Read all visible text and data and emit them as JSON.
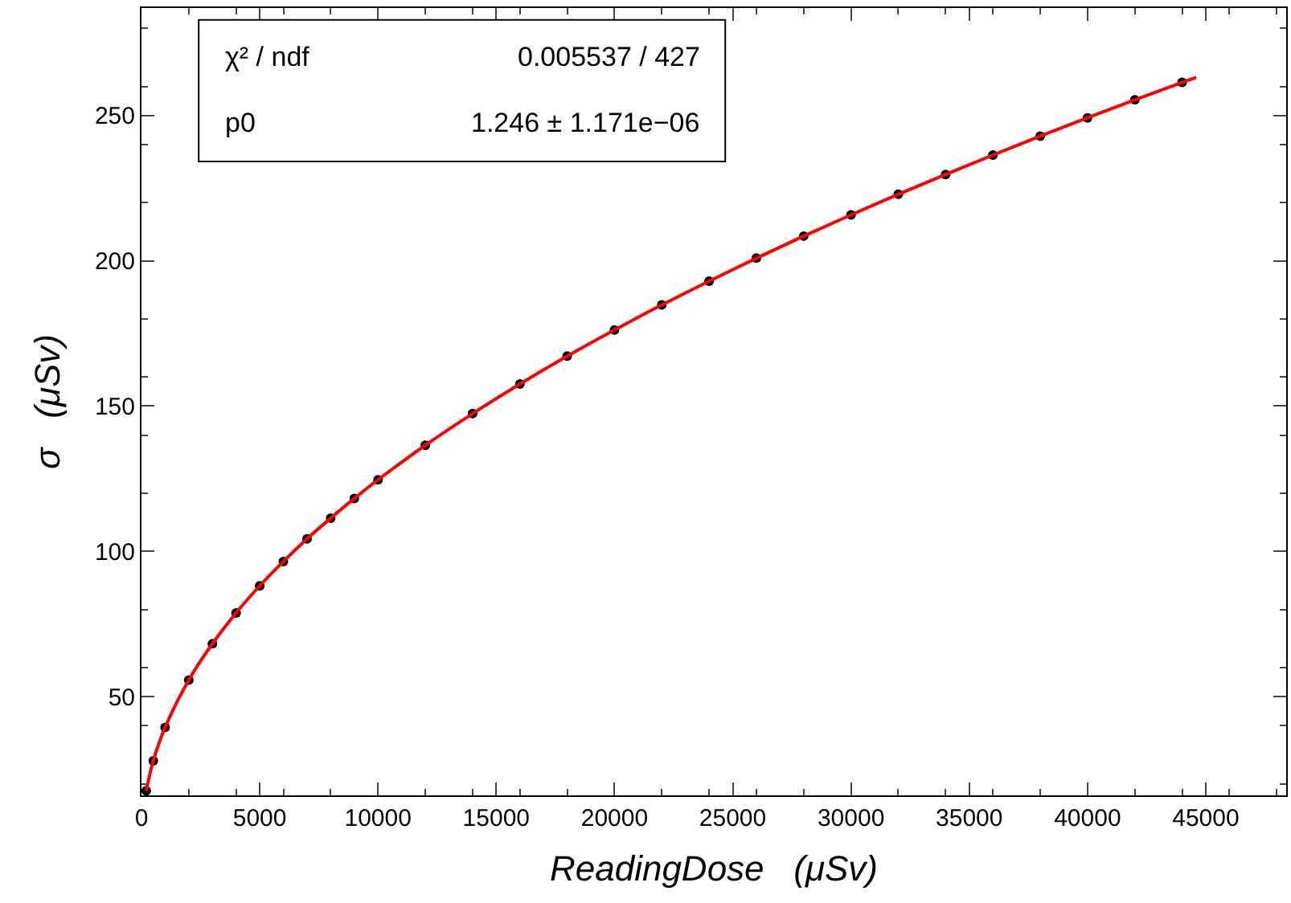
{
  "chart_data": {
    "type": "scatter",
    "xlabel": "ReadingDose   (μSv)",
    "ylabel": "σ   (μSv)",
    "annotations": [
      "χ² / ndf",
      "0.005537 / 427",
      "p0",
      "1.246 ± 1.171e−06"
    ],
    "xlim": [
      0,
      48400
    ],
    "xticks": [
      0,
      5000,
      10000,
      15000,
      20000,
      25000,
      30000,
      35000,
      40000,
      45000
    ],
    "ylim": [
      16,
      287
    ],
    "yticks": [
      50,
      100,
      150,
      200,
      250
    ],
    "series": [
      {
        "marker": "circle",
        "color": "#000000",
        "x": [
          200,
          500,
          1000,
          2000,
          3000,
          4000,
          5000,
          6000,
          7000,
          8000,
          9000,
          10000,
          12000,
          14000,
          16000,
          18000,
          20000,
          22000,
          24000,
          26000,
          28000,
          30000,
          32000,
          34000,
          36000,
          38000,
          40000,
          42000,
          44000
        ],
        "values": [
          17.6,
          27.9,
          39.4,
          55.7,
          68.2,
          78.8,
          88.1,
          96.5,
          104.3,
          111.4,
          118.2,
          124.6,
          136.5,
          147.4,
          157.6,
          167.2,
          176.2,
          184.8,
          193.0,
          200.9,
          208.5,
          215.8,
          222.9,
          229.7,
          236.4,
          242.9,
          249.2,
          255.4,
          261.4
        ]
      },
      {
        "type": "line",
        "marker": "none",
        "color": "#ff0000",
        "x": [
          200,
          500,
          1000,
          2000,
          3000,
          4000,
          5000,
          6000,
          7000,
          8000,
          9000,
          10000,
          12000,
          14000,
          16000,
          18000,
          20000,
          22000,
          24000,
          26000,
          28000,
          30000,
          32000,
          34000,
          36000,
          38000,
          40000,
          42000,
          44000,
          44600
        ],
        "values": [
          17.6,
          27.9,
          39.4,
          55.7,
          68.2,
          78.8,
          88.1,
          96.5,
          104.3,
          111.4,
          118.2,
          124.6,
          136.5,
          147.4,
          157.6,
          167.2,
          176.2,
          184.8,
          193.0,
          200.9,
          208.5,
          215.8,
          222.9,
          229.7,
          236.4,
          242.9,
          249.2,
          255.4,
          261.4,
          263.1
        ]
      }
    ]
  }
}
